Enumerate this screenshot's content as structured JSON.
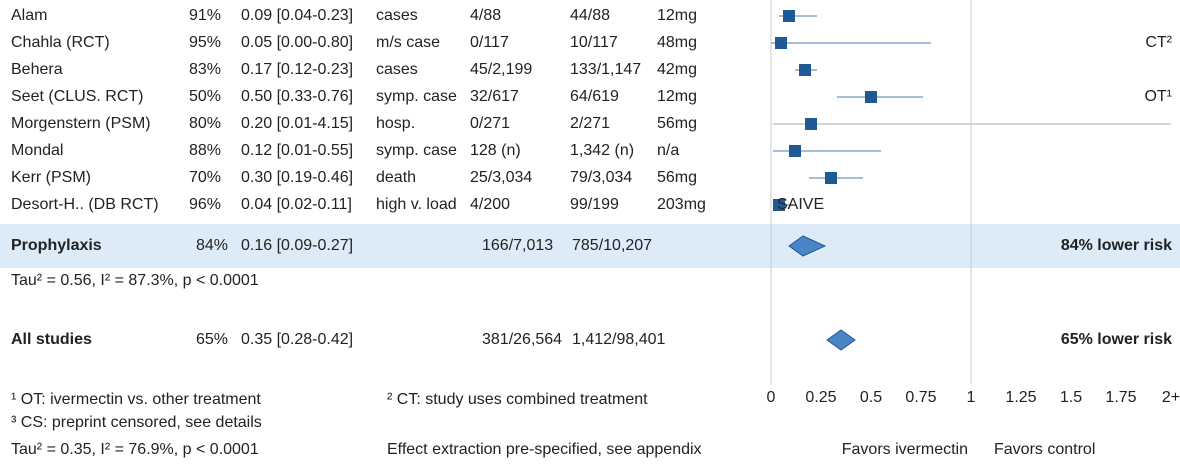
{
  "chart_data": {
    "type": "forest",
    "rows": [
      {
        "name": "Alam",
        "improvement": "91%",
        "effect": "0.09 [0.04-0.23]",
        "outcome": "cases",
        "treatment": "4/88",
        "control": "44/88",
        "dose": "12mg",
        "value": 0.09,
        "lo": 0.04,
        "hi": 0.23
      },
      {
        "name": "Chahla (RCT)",
        "improvement": "95%",
        "effect": "0.05 [0.00-0.80]",
        "outcome": "m/s case",
        "treatment": "0/117",
        "control": "10/117",
        "dose": "48mg",
        "value": 0.05,
        "lo": 0.0,
        "hi": 0.8,
        "note": "CT²"
      },
      {
        "name": "Behera",
        "improvement": "83%",
        "effect": "0.17 [0.12-0.23]",
        "outcome": "cases",
        "treatment": "45/2,199",
        "control": "133/1,147",
        "dose": "42mg",
        "value": 0.17,
        "lo": 0.12,
        "hi": 0.23
      },
      {
        "name": "Seet (CLUS. RCT)",
        "improvement": "50%",
        "effect": "0.50 [0.33-0.76]",
        "outcome": "symp. case",
        "treatment": "32/617",
        "control": "64/619",
        "dose": "12mg",
        "value": 0.5,
        "lo": 0.33,
        "hi": 0.76,
        "note": "OT¹"
      },
      {
        "name": "Morgenstern (PSM)",
        "improvement": "80%",
        "effect": "0.20 [0.01-4.15]",
        "outcome": "hosp.",
        "treatment": "0/271",
        "control": "2/271",
        "dose": "56mg",
        "value": 0.2,
        "lo": 0.01,
        "hi": 4.15
      },
      {
        "name": "Mondal",
        "improvement": "88%",
        "effect": "0.12 [0.01-0.55]",
        "outcome": "symp. case",
        "treatment": "128 (n)",
        "control": "1,342 (n)",
        "dose": "n/a",
        "value": 0.12,
        "lo": 0.01,
        "hi": 0.55
      },
      {
        "name": "Kerr (PSM)",
        "improvement": "70%",
        "effect": "0.30 [0.19-0.46]",
        "outcome": "death",
        "treatment": "25/3,034",
        "control": "79/3,034",
        "dose": "56mg",
        "value": 0.3,
        "lo": 0.19,
        "hi": 0.46
      },
      {
        "name": "Desort-H.. (DB RCT)",
        "improvement": "96%",
        "effect": "0.04 [0.02-0.11]",
        "outcome": "high v. load",
        "treatment": "4/200",
        "control": "99/199",
        "dose": "203mg",
        "value": 0.04,
        "lo": 0.02,
        "hi": 0.11,
        "mark_label": "SAIVE"
      }
    ],
    "summary": [
      {
        "name": "Prophylaxis",
        "improvement": "84%",
        "effect": "0.16 [0.09-0.27]",
        "treatment": "166/7,013",
        "control": "785/10,207",
        "value": 0.16,
        "lo": 0.09,
        "hi": 0.27,
        "result": "84% lower risk",
        "stats": "Tau² = 0.56, I² = 87.3%, p < 0.0001"
      },
      {
        "name": "All studies",
        "improvement": "65%",
        "effect": "0.35 [0.28-0.42]",
        "treatment": "381/26,564",
        "control": "1,412/98,401",
        "value": 0.35,
        "lo": 0.28,
        "hi": 0.42,
        "result": "65% lower risk"
      }
    ],
    "xlim": [
      0,
      2
    ],
    "xticks": [
      0,
      0.25,
      0.5,
      0.75,
      1,
      1.25,
      1.5,
      1.75,
      {
        "value": 2,
        "label": "2+"
      }
    ],
    "footnotes": [
      "¹ OT: ivermectin vs. other treatment",
      "³ CS: preprint censored, see details",
      "Tau² = 0.35, I² = 76.9%, p < 0.0001",
      "² CT: study uses combined treatment",
      "Effect extraction pre-specified, see appendix"
    ],
    "favors": [
      "Favors ivermectin",
      "Favors control"
    ],
    "color": "#1f5a96"
  }
}
